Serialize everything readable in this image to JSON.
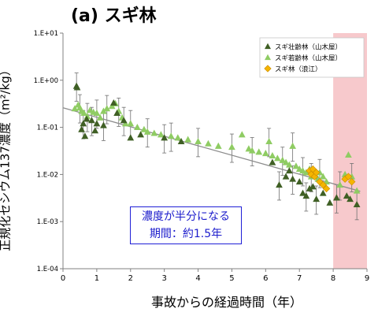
{
  "title": "(a) スギ林",
  "chart_data": {
    "type": "scatter",
    "title": "(a) スギ林",
    "xlabel": "事故からの経過時間（年）",
    "ylabel": "正規化セシウム137濃度（m²/kg）",
    "xlim": [
      0,
      9
    ],
    "ylim": [
      0.0001,
      10
    ],
    "yscale": "log",
    "xticks": [
      0,
      1,
      2,
      3,
      4,
      5,
      6,
      7,
      8,
      9
    ],
    "yticks": [
      {
        "value": 10,
        "label": "1.E+01"
      },
      {
        "value": 1,
        "label": "1.E+00"
      },
      {
        "value": 0.1,
        "label": "1.E-01"
      },
      {
        "value": 0.01,
        "label": "1.E-02"
      },
      {
        "value": 0.001,
        "label": "1.E-03"
      },
      {
        "value": 0.0001,
        "label": "1.E-04"
      }
    ],
    "legend_position": "top-right",
    "shaded_region": {
      "x_from": 8,
      "x_to": 9,
      "color": "#f7c9cc"
    },
    "annotation": [
      "濃度が半分になる",
      "期間：約1.5年"
    ],
    "trendline": {
      "x": [
        0,
        8.8
      ],
      "y": [
        0.26,
        0.0044
      ],
      "color": "#8c8c8c"
    },
    "series": [
      {
        "name": "スギ壮齢林（山木屋）",
        "marker": "triangle",
        "color": "#3f5f24",
        "points": [
          [
            0.4,
            0.75
          ],
          [
            0.42,
            0.7
          ],
          [
            0.55,
            0.09
          ],
          [
            0.6,
            0.12
          ],
          [
            0.65,
            0.065
          ],
          [
            0.7,
            0.15
          ],
          [
            0.85,
            0.14
          ],
          [
            0.95,
            0.085
          ],
          [
            1.0,
            0.12
          ],
          [
            1.2,
            0.11
          ],
          [
            1.5,
            0.33
          ],
          [
            1.6,
            0.2
          ],
          [
            1.8,
            0.14
          ],
          [
            2.0,
            0.06
          ],
          [
            2.3,
            0.07
          ],
          [
            3.0,
            0.06
          ],
          [
            3.5,
            0.05
          ],
          [
            6.2,
            0.018
          ],
          [
            6.4,
            0.006
          ],
          [
            6.6,
            0.009
          ],
          [
            6.7,
            0.012
          ],
          [
            6.8,
            0.008
          ],
          [
            7.0,
            0.007
          ],
          [
            7.1,
            0.004
          ],
          [
            7.2,
            0.0035
          ],
          [
            7.3,
            0.005
          ],
          [
            7.4,
            0.0055
          ],
          [
            7.5,
            0.003
          ],
          [
            7.7,
            0.004
          ],
          [
            7.9,
            0.0025
          ],
          [
            8.1,
            0.0032
          ],
          [
            8.4,
            0.0035
          ],
          [
            8.5,
            0.003
          ],
          [
            8.7,
            0.0023
          ]
        ]
      },
      {
        "name": "スギ若齢林（山木屋）",
        "marker": "triangle",
        "color": "#8fcc63",
        "points": [
          [
            0.35,
            0.25
          ],
          [
            0.45,
            0.3
          ],
          [
            0.5,
            0.26
          ],
          [
            0.55,
            0.22
          ],
          [
            0.62,
            0.2
          ],
          [
            0.72,
            0.17
          ],
          [
            0.8,
            0.23
          ],
          [
            0.9,
            0.21
          ],
          [
            1.0,
            0.2
          ],
          [
            1.1,
            0.16
          ],
          [
            1.2,
            0.22
          ],
          [
            1.3,
            0.25
          ],
          [
            1.45,
            0.28
          ],
          [
            1.55,
            0.32
          ],
          [
            1.65,
            0.22
          ],
          [
            1.75,
            0.16
          ],
          [
            1.85,
            0.12
          ],
          [
            2.0,
            0.12
          ],
          [
            2.2,
            0.1
          ],
          [
            2.4,
            0.09
          ],
          [
            2.5,
            0.08
          ],
          [
            2.7,
            0.075
          ],
          [
            2.9,
            0.07
          ],
          [
            3.2,
            0.065
          ],
          [
            3.4,
            0.06
          ],
          [
            3.7,
            0.055
          ],
          [
            4.0,
            0.05
          ],
          [
            4.3,
            0.045
          ],
          [
            4.6,
            0.04
          ],
          [
            5.0,
            0.038
          ],
          [
            5.3,
            0.07
          ],
          [
            5.5,
            0.035
          ],
          [
            5.6,
            0.032
          ],
          [
            5.8,
            0.03
          ],
          [
            6.0,
            0.028
          ],
          [
            6.1,
            0.05
          ],
          [
            6.2,
            0.025
          ],
          [
            6.35,
            0.022
          ],
          [
            6.5,
            0.02
          ],
          [
            6.6,
            0.018
          ],
          [
            6.7,
            0.016
          ],
          [
            6.8,
            0.04
          ],
          [
            6.9,
            0.015
          ],
          [
            7.0,
            0.013
          ],
          [
            7.1,
            0.012
          ],
          [
            7.2,
            0.011
          ],
          [
            7.3,
            0.013
          ],
          [
            7.35,
            0.009
          ],
          [
            7.45,
            0.01
          ],
          [
            7.55,
            0.008
          ],
          [
            7.6,
            0.011
          ],
          [
            7.7,
            0.009
          ],
          [
            7.8,
            0.007
          ],
          [
            8.2,
            0.006
          ],
          [
            8.35,
            0.01
          ],
          [
            8.45,
            0.026
          ],
          [
            8.55,
            0.009
          ],
          [
            8.7,
            0.0045
          ]
        ]
      },
      {
        "name": "スギ林（浪江）",
        "marker": "diamond",
        "color": "#f5b500",
        "points": [
          [
            7.3,
            0.012
          ],
          [
            7.35,
            0.01
          ],
          [
            7.4,
            0.013
          ],
          [
            7.45,
            0.009
          ],
          [
            7.5,
            0.011
          ],
          [
            7.6,
            0.007
          ],
          [
            7.7,
            0.006
          ],
          [
            7.8,
            0.005
          ],
          [
            8.35,
            0.008
          ],
          [
            8.45,
            0.009
          ],
          [
            8.55,
            0.007
          ]
        ]
      }
    ]
  }
}
